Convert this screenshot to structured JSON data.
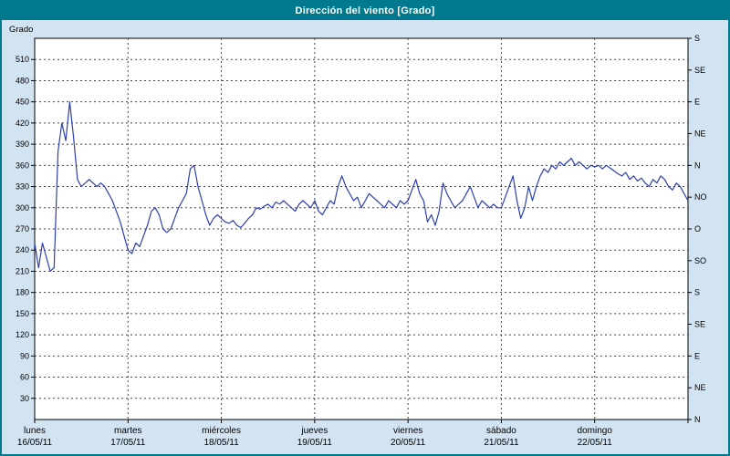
{
  "title": "Dirección del viento [Grado]",
  "y_axis": {
    "label": "Grado"
  },
  "right_axis": {
    "labels_bottom_to_top": [
      "N",
      "NE",
      "E",
      "SE",
      "S",
      "SO",
      "O",
      "NO",
      "N",
      "NE",
      "E",
      "SE",
      "S"
    ],
    "step_degrees": 45
  },
  "colors": {
    "titlebar": "#00798e",
    "window_background": "#d2e4f2",
    "plot_background": "#ffffff",
    "grid": "#444444",
    "axis": "#000000",
    "line": "#2d3fae"
  },
  "chart_data": {
    "type": "line",
    "title": "Dirección del viento [Grado]",
    "ylabel": "Grado",
    "ylim": [
      0,
      540
    ],
    "y_tick_step": 30,
    "grid": "dashed",
    "legend_position": "none",
    "x_unit": "hours",
    "points_per_day": 24,
    "days": [
      {
        "name": "lunes",
        "date": "16/05/11"
      },
      {
        "name": "martes",
        "date": "17/05/11"
      },
      {
        "name": "miércoles",
        "date": "18/05/11"
      },
      {
        "name": "jueves",
        "date": "19/05/11"
      },
      {
        "name": "viernes",
        "date": "20/05/11"
      },
      {
        "name": "sábado",
        "date": "21/05/11"
      },
      {
        "name": "domingo",
        "date": "22/05/11"
      }
    ],
    "series": [
      {
        "name": "Dirección del viento [Grado]",
        "values": [
          250,
          215,
          250,
          230,
          210,
          215,
          380,
          420,
          395,
          450,
          400,
          340,
          330,
          335,
          340,
          335,
          330,
          335,
          330,
          320,
          310,
          295,
          280,
          260,
          240,
          235,
          250,
          245,
          260,
          275,
          295,
          300,
          290,
          270,
          265,
          270,
          285,
          300,
          310,
          320,
          355,
          360,
          330,
          310,
          290,
          275,
          285,
          290,
          285,
          280,
          278,
          282,
          275,
          272,
          278,
          285,
          290,
          300,
          298,
          302,
          305,
          300,
          308,
          305,
          310,
          305,
          300,
          295,
          305,
          310,
          305,
          300,
          310,
          295,
          290,
          300,
          310,
          305,
          330,
          345,
          330,
          320,
          310,
          315,
          300,
          310,
          320,
          315,
          310,
          305,
          300,
          310,
          305,
          300,
          310,
          305,
          310,
          325,
          340,
          320,
          310,
          280,
          290,
          275,
          295,
          335,
          320,
          310,
          300,
          305,
          310,
          320,
          330,
          315,
          300,
          310,
          305,
          300,
          305,
          300,
          300,
          315,
          330,
          345,
          310,
          285,
          300,
          330,
          310,
          330,
          345,
          355,
          350,
          360,
          355,
          365,
          360,
          365,
          370,
          360,
          365,
          360,
          355,
          360,
          358,
          360,
          355,
          360,
          356,
          352,
          348,
          345,
          350,
          340,
          345,
          338,
          342,
          335,
          330,
          340,
          335,
          345,
          340,
          330,
          325,
          335,
          330,
          320,
          310
        ]
      }
    ]
  }
}
